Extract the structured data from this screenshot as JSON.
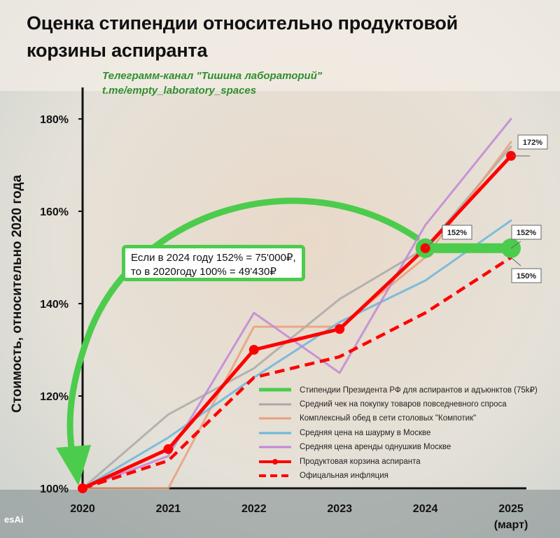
{
  "title": [
    "Оценка стипендии относительно продуктовой",
    "корзины аспиранта"
  ],
  "source": [
    "Телеграмм-канал \"Тишина лабораторий\"",
    "t.me/empty_laboratory_spaces"
  ],
  "callout": [
    "Если в 2024 году 152% = 75'000₽,",
    "то в 2020году 100% = 49'430₽"
  ],
  "logo": "esAi",
  "colors": {
    "green": "#4ccc4c",
    "red": "#ff0000",
    "gray": "#a9a9a9",
    "orange": "#e8a07a",
    "blue": "#6ab6dc",
    "purple": "#c087d6"
  },
  "chart_data": {
    "type": "line",
    "ylabel": "Стоимость, относительно 2020 года",
    "xlabel": "",
    "x": [
      "2020",
      "2021",
      "2022",
      "2023",
      "2024",
      "2025"
    ],
    "x_note": "(март)",
    "yticks": [
      "100%",
      "120%",
      "140%",
      "160%",
      "180%"
    ],
    "ylim": [
      100,
      184
    ],
    "grid": false,
    "legend_position": "bottom-right",
    "series": [
      {
        "name": "Стипендии Президента РФ для аспирантов и адъюнктов (75k₽)",
        "color": "#4ccc4c",
        "style": "thick",
        "x": [
          4,
          5
        ],
        "values": [
          152,
          152
        ]
      },
      {
        "name": "Средний чек на покупку товаров повседневного спроса",
        "color": "#a9a9a9",
        "style": "solid",
        "x": [
          0,
          1,
          2,
          3,
          4,
          5
        ],
        "values": [
          100,
          116,
          126,
          141,
          152,
          174
        ]
      },
      {
        "name": "Комплексный обед в сети столовых \"Компотик\"",
        "color": "#e8a07a",
        "style": "solid",
        "x": [
          0,
          1,
          2,
          3,
          4,
          5
        ],
        "values": [
          100,
          100,
          135,
          135,
          150,
          175
        ]
      },
      {
        "name": "Средняя цена на шаурму в Москве",
        "color": "#6ab6dc",
        "style": "solid",
        "x": [
          0,
          1,
          2,
          3,
          4,
          5
        ],
        "values": [
          100,
          111,
          124,
          136,
          145,
          158
        ]
      },
      {
        "name": "Средняя цена аренды однушкив Москве",
        "color": "#c087d6",
        "style": "solid",
        "x": [
          0,
          1,
          2,
          3,
          4,
          5
        ],
        "values": [
          100,
          107,
          138,
          125,
          157,
          180
        ]
      },
      {
        "name": "Продуктовая корзина аспиранта",
        "color": "#ff0000",
        "style": "markers",
        "x": [
          0,
          1,
          2,
          3,
          4,
          5
        ],
        "values": [
          100,
          108.5,
          130,
          134.5,
          152,
          172
        ]
      },
      {
        "name": "Офицальная инфляция",
        "color": "#ff0000",
        "style": "dashed",
        "x": [
          0,
          1,
          2,
          3,
          4,
          5
        ],
        "values": [
          100,
          106,
          124,
          128.5,
          138,
          150
        ]
      }
    ],
    "annotations": [
      {
        "text": "172%",
        "x": 5,
        "y": 172
      },
      {
        "text": "152%",
        "x": 4,
        "y": 152
      },
      {
        "text": "152%",
        "x": 5,
        "y": 152
      },
      {
        "text": "150%",
        "x": 5,
        "y": 150
      }
    ]
  }
}
